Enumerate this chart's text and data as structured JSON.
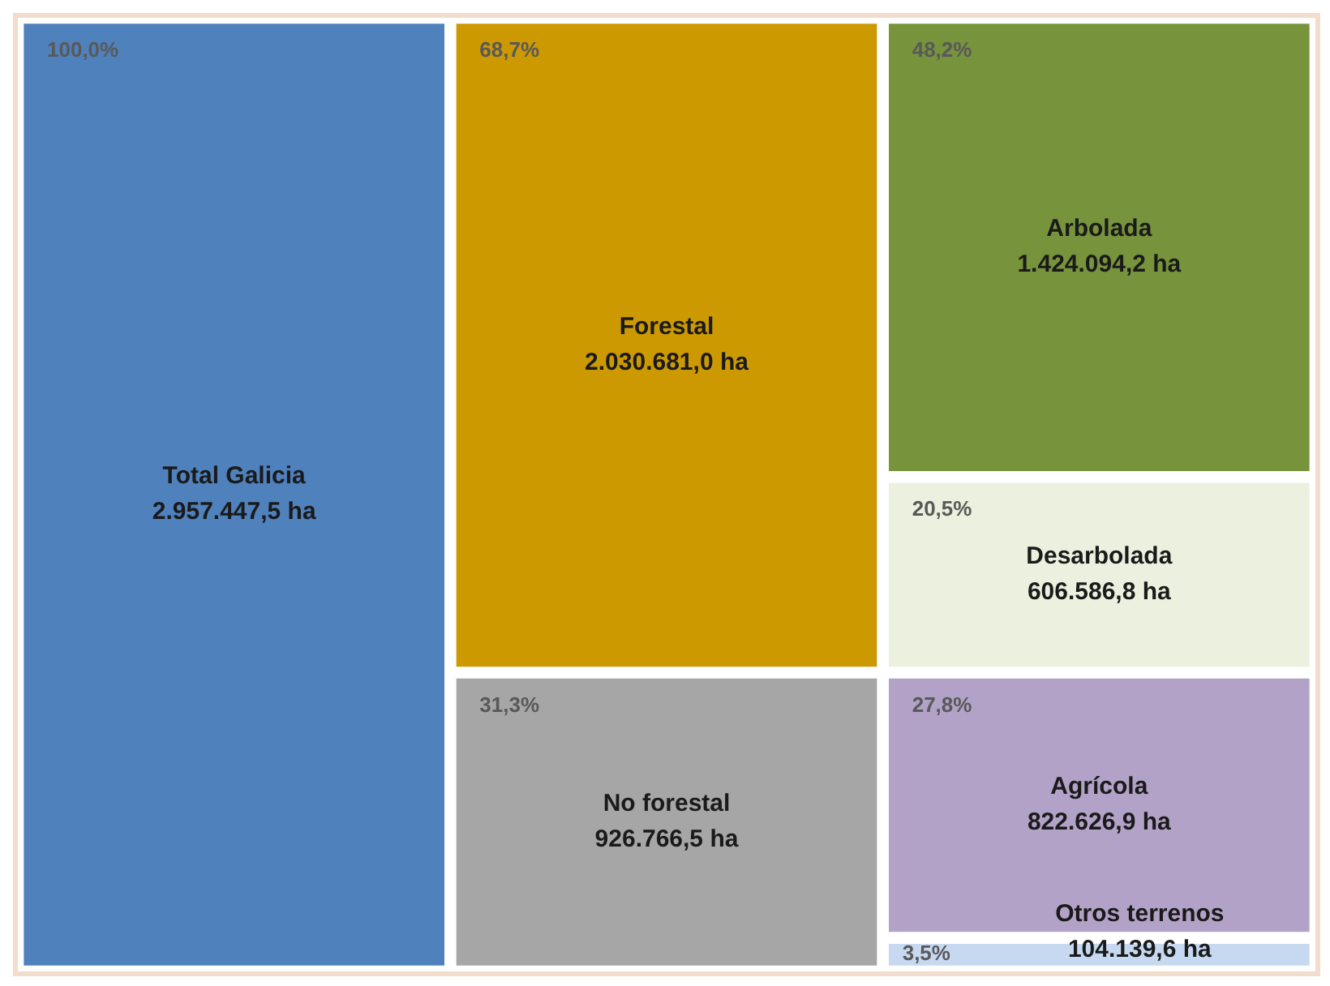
{
  "chart_data": {
    "type": "other",
    "categories": [
      "Total Galicia",
      "Forestal",
      "No forestal",
      "Arbolada",
      "Desarbolada",
      "Agrícola",
      "Otros terrenos"
    ],
    "values": [
      2957447.5,
      2030681.0,
      926766.5,
      1424094.2,
      606586.8,
      822626.9,
      104139.6
    ],
    "value_labels": [
      "2.957.447,5 ha",
      "2.030.681,0 ha",
      "926.766,5 ha",
      "1.424.094,2 ha",
      "606.586,8 ha",
      "822.626,9 ha",
      "104.139,6 ha"
    ],
    "colors": [
      "#4f81bd",
      "#cc9900",
      "#a6a6a6",
      "#77933c",
      "#ebf1de",
      "#b3a2c7",
      "#c6d9f1"
    ],
    "annotations": [
      {
        "text": "100,0%",
        "x": "Total Galicia"
      },
      {
        "text": "68,7%",
        "x": "Forestal"
      },
      {
        "text": "31,3%",
        "x": "No forestal"
      },
      {
        "text": "48,2%",
        "x": "Arbolada"
      },
      {
        "text": "20,5%",
        "x": "Desarbolada"
      },
      {
        "text": "27,8%",
        "x": "Agrícola"
      },
      {
        "text": "3,5%",
        "x": "Otros terrenos"
      }
    ]
  }
}
